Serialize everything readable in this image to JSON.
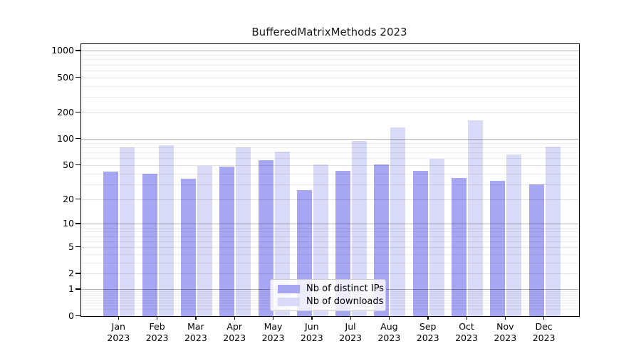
{
  "title": "BufferedMatrixMethods 2023",
  "colors": {
    "ips_bar": "#a6a6f2",
    "downloads_bar": "#d9d9f8",
    "axis": "#000000",
    "background": "#ffffff"
  },
  "chart_data": {
    "type": "bar",
    "title": "BufferedMatrixMethods 2023",
    "x_months": [
      "Jan",
      "Feb",
      "Mar",
      "Apr",
      "May",
      "Jun",
      "Jul",
      "Aug",
      "Sep",
      "Oct",
      "Nov",
      "Dec"
    ],
    "x_year": "2023",
    "series": [
      {
        "name": "Nb of distinct IPs",
        "color": "#a6a6f2",
        "values": [
          42,
          40,
          35,
          48,
          57,
          26,
          43,
          51,
          43,
          36,
          33,
          30
        ]
      },
      {
        "name": "Nb of downloads",
        "color": "#d9d9f8",
        "values": [
          80,
          86,
          49,
          80,
          72,
          51,
          96,
          135,
          60,
          165,
          67,
          82
        ]
      }
    ],
    "y_scale": "log1p",
    "y_ticks": [
      0,
      1,
      2,
      5,
      10,
      20,
      50,
      100,
      200,
      500,
      1000
    ],
    "y_tick_labels": [
      "0",
      "1",
      "2",
      "5",
      "10",
      "20",
      "50",
      "100",
      "200",
      "500",
      "1000"
    ],
    "y_minor_gridlines": [
      0.2,
      0.3,
      0.4,
      0.5,
      0.6,
      0.7,
      0.8,
      0.9,
      3,
      4,
      6,
      7,
      8,
      9,
      30,
      40,
      60,
      70,
      80,
      90,
      300,
      400,
      600,
      700,
      800,
      900
    ],
    "ylim_top_approx": 1200,
    "grid": true,
    "legend_position": "lower center"
  }
}
